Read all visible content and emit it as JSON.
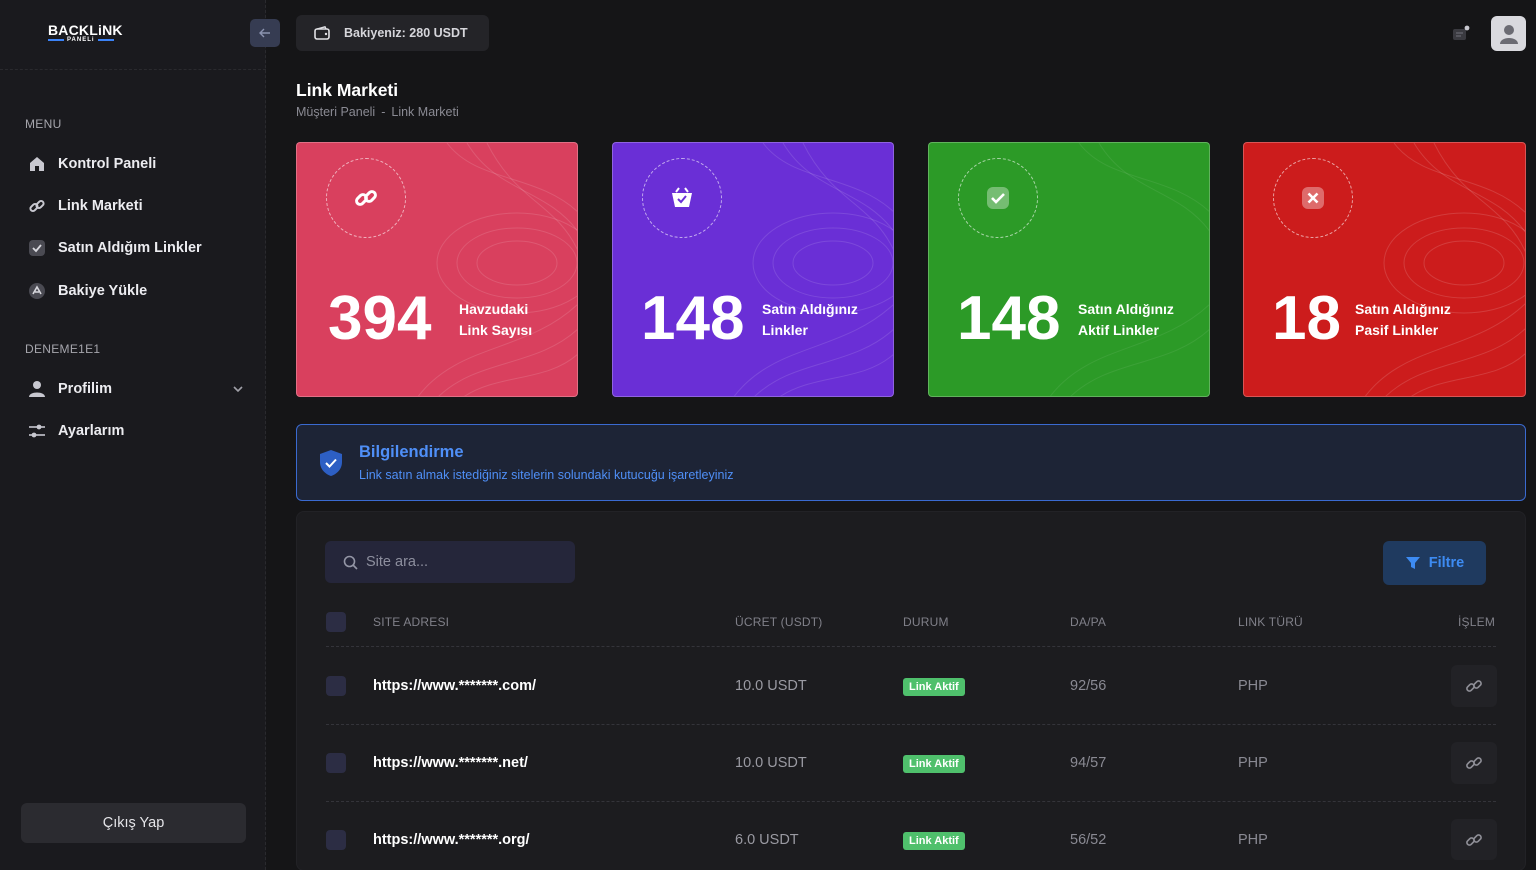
{
  "brand": {
    "line1": "BACKLiNK",
    "line2": "PANELi",
    "accent": "#3b82f6"
  },
  "sidebar": {
    "menu_label": "MENU",
    "items": [
      {
        "label": "Kontrol Paneli",
        "icon": "home-icon"
      },
      {
        "label": "Link Marketi",
        "icon": "link-icon"
      },
      {
        "label": "Satın Aldığım Linkler",
        "icon": "check-square-icon"
      },
      {
        "label": "Bakiye Yükle",
        "icon": "wallet-icon"
      }
    ],
    "user_section_label": "DENEME1E1",
    "user_items": [
      {
        "label": "Profilim",
        "icon": "user-icon"
      },
      {
        "label": "Ayarlarım",
        "icon": "settings-sliders-icon"
      }
    ],
    "logout_label": "Çıkış Yap"
  },
  "header": {
    "balance_text": "Bakiyeniz: 280 USDT"
  },
  "page": {
    "title": "Link Marketi",
    "breadcrumb": [
      "Müşteri Paneli",
      "-",
      "Link Marketi"
    ]
  },
  "stats": [
    {
      "value": "394",
      "label1": "Havzudaki",
      "label2": "Link Sayısı",
      "color": "#d9405e",
      "icon": "link-icon"
    },
    {
      "value": "148",
      "label1": "Satın Aldığınız",
      "label2": "Linkler",
      "color": "#6a2fd6",
      "icon": "basket-icon"
    },
    {
      "value": "148",
      "label1": "Satın Aldığınız",
      "label2": "Aktif Linkler",
      "color": "#2c9a27",
      "icon": "check-icon"
    },
    {
      "value": "18",
      "label1": "Satın Aldığınız",
      "label2": "Pasif Linkler",
      "color": "#cc1c1c",
      "icon": "close-icon"
    }
  ],
  "alert": {
    "title": "Bilgilendirme",
    "text": "Link satın almak istediğiniz sitelerin solundaki kutucuğu işaretleyiniz"
  },
  "search": {
    "placeholder": "Site ara..."
  },
  "filter_label": "Filtre",
  "table": {
    "columns": [
      "SITE ADRESI",
      "ÜCRET (USDT)",
      "DURUM",
      "DA/PA",
      "LINK TÜRÜ",
      "İŞLEM"
    ],
    "rows": [
      {
        "site": "https://www.*******.com/",
        "price": "10.0 USDT",
        "status": "Link Aktif",
        "dapa": "92/56",
        "type": "PHP"
      },
      {
        "site": "https://www.*******.net/",
        "price": "10.0 USDT",
        "status": "Link Aktif",
        "dapa": "94/57",
        "type": "PHP"
      },
      {
        "site": "https://www.*******.org/",
        "price": "6.0 USDT",
        "status": "Link Aktif",
        "dapa": "56/52",
        "type": "PHP"
      }
    ]
  }
}
